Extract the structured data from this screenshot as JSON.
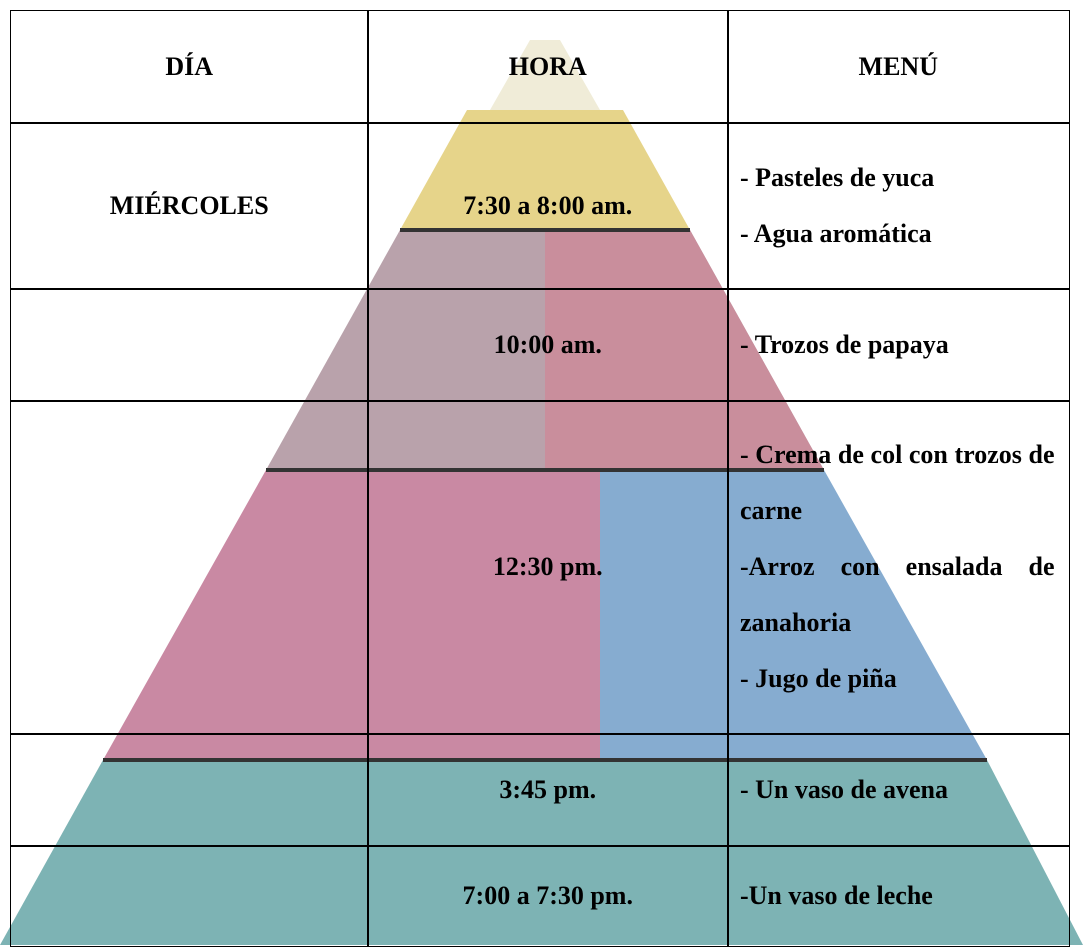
{
  "table": {
    "header": [
      "DÍA",
      "HORA",
      "MENÚ"
    ],
    "rows": [
      {
        "day": "MIÉRCOLES",
        "time": "7:30 a 8:00 am.",
        "menu": [
          "- Pasteles de yuca",
          "- Agua aromática"
        ]
      },
      {
        "time": "10:00 am.",
        "menu": [
          "- Trozos de papaya"
        ]
      },
      {
        "time": "12:30 pm.",
        "menu": [
          "- Crema de col con trozos de carne",
          "-Arroz con ensalada de zanahoria",
          "- Jugo de piña"
        ]
      },
      {
        "time": "3:45 pm.",
        "menu": [
          "- Un vaso de avena"
        ]
      },
      {
        "time": "7:00 a 7:30 pm.",
        "menu": [
          "-Un vaso de leche"
        ]
      }
    ]
  }
}
